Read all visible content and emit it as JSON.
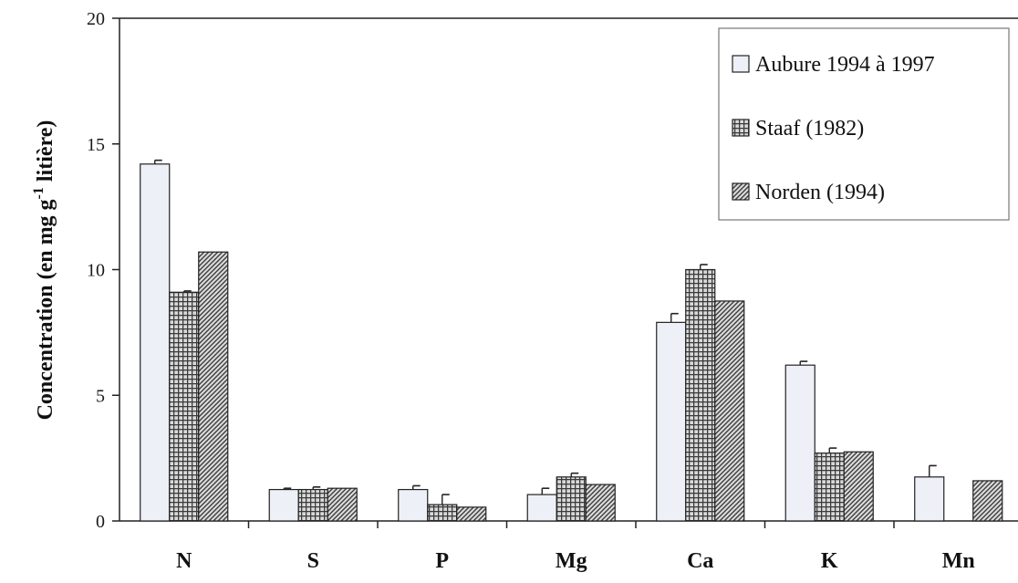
{
  "chart_data": {
    "type": "bar",
    "title": "",
    "xlabel": "",
    "ylabel": "Concentration (en mg g-1 litière)",
    "ylabel_parts": {
      "before": "Concentration (en mg g",
      "superscript": "-1",
      "after": " litière)"
    },
    "ylim": [
      0,
      20
    ],
    "yticks": [
      0,
      5,
      10,
      15,
      20
    ],
    "grid": false,
    "legend_position": "top-right",
    "categories": [
      "N",
      "S",
      "P",
      "Mg",
      "Ca",
      "K",
      "Mn"
    ],
    "series": [
      {
        "name": "Aubure 1994 à 1997",
        "values": [
          14.2,
          1.25,
          1.25,
          1.05,
          7.9,
          6.2,
          1.75
        ],
        "errors": [
          0.15,
          0.05,
          0.15,
          0.25,
          0.35,
          0.15,
          0.45
        ],
        "color": "#eef0f8",
        "pattern": "plain"
      },
      {
        "name": "Staaf (1982)",
        "values": [
          9.1,
          1.25,
          0.65,
          1.75,
          10.0,
          2.7,
          null
        ],
        "errors": [
          0.05,
          0.1,
          0.4,
          0.15,
          0.2,
          0.2,
          null
        ],
        "color": "#666666",
        "pattern": "grid"
      },
      {
        "name": "Norden (1994)",
        "values": [
          10.7,
          1.3,
          0.55,
          1.45,
          8.75,
          2.75,
          1.6
        ],
        "errors": [
          null,
          null,
          null,
          null,
          null,
          null,
          null
        ],
        "color": "#555555",
        "pattern": "diagonal"
      }
    ]
  }
}
